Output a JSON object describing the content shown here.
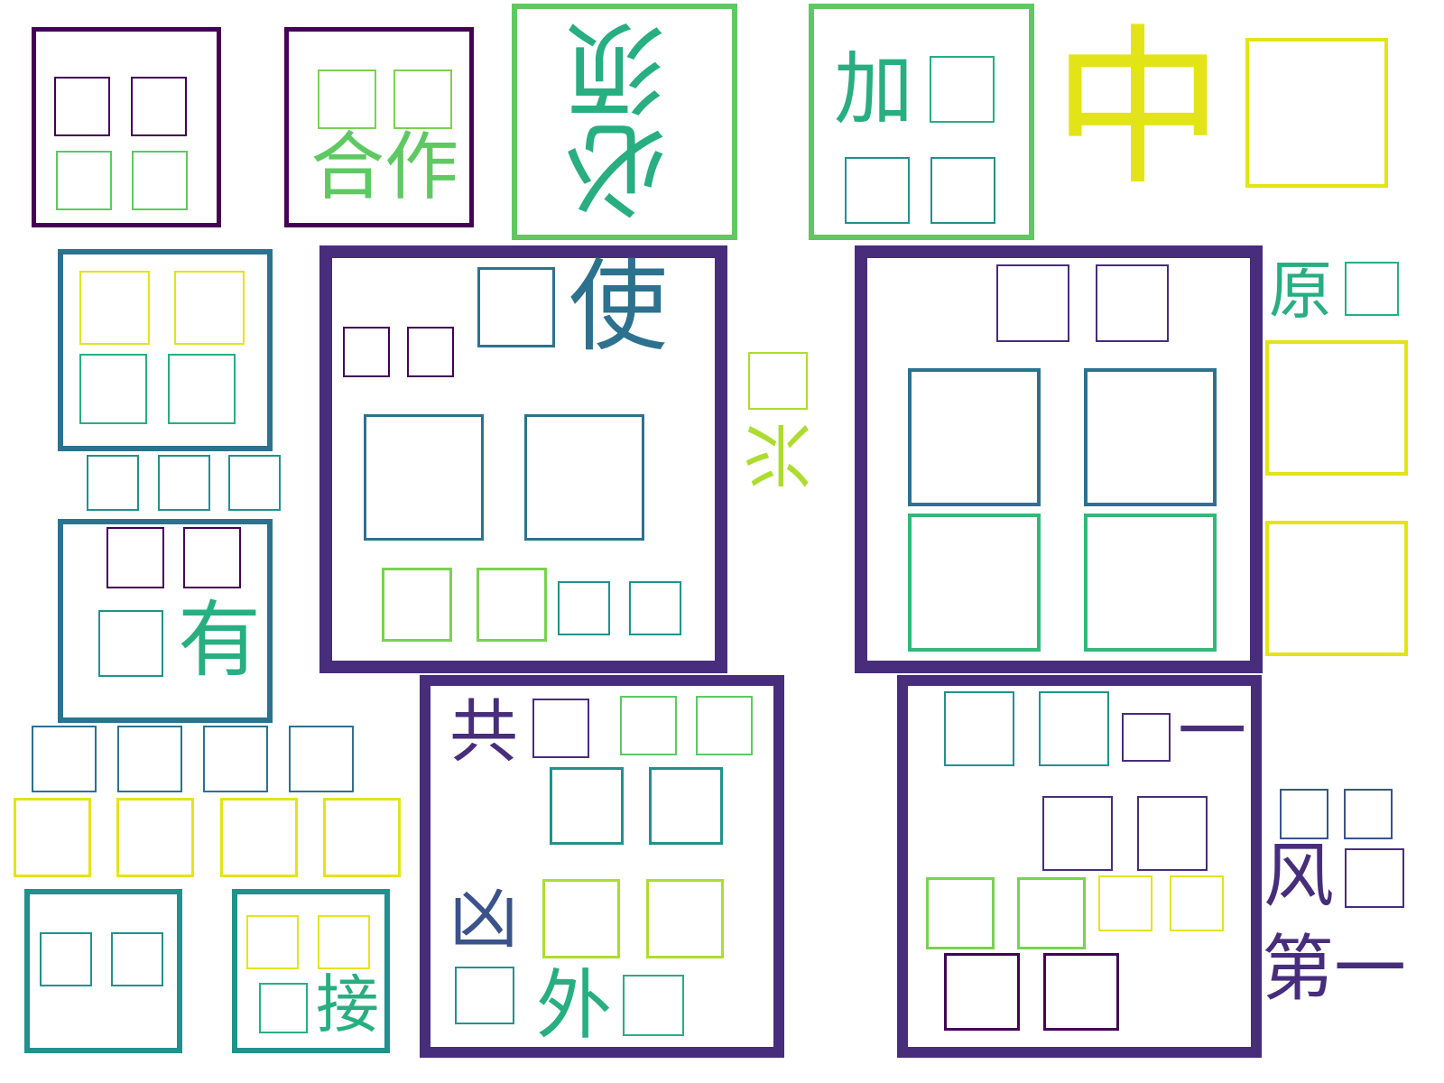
{
  "palette": {
    "c1": "#440154",
    "c2": "#472d7b",
    "c3": "#3b528b",
    "c4": "#2c728e",
    "c5": "#21918c",
    "c6": "#28ae80",
    "c7": "#5ec962",
    "c8": "#addc30",
    "c9": "#e3e418"
  },
  "words": [
    {
      "text": "合作"
    },
    {
      "text": "必须"
    },
    {
      "text": "加"
    },
    {
      "text": "中"
    },
    {
      "text": "使"
    },
    {
      "text": "原"
    },
    {
      "text": "兴"
    },
    {
      "text": "有"
    },
    {
      "text": "共"
    },
    {
      "text": "一"
    },
    {
      "text": "凶"
    },
    {
      "text": "外"
    },
    {
      "text": "风"
    },
    {
      "text": "第一"
    },
    {
      "text": "接"
    }
  ]
}
